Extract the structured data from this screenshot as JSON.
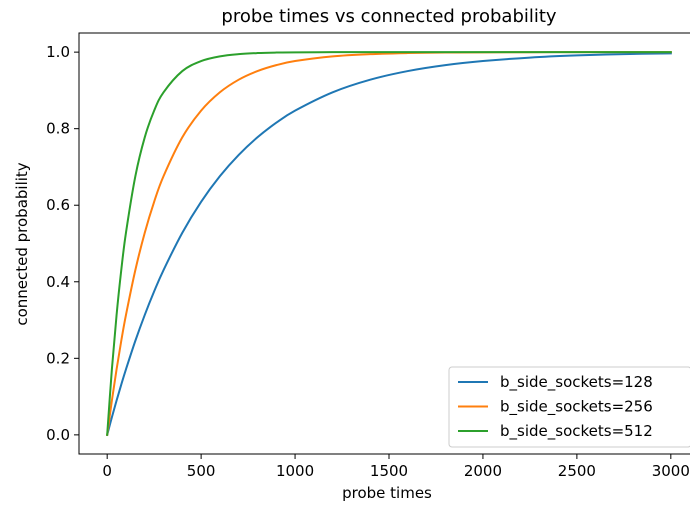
{
  "chart_data": {
    "type": "line",
    "title": "probe times vs connected probability",
    "xlabel": "probe times",
    "ylabel": "connected probability",
    "xlim": [
      -150,
      3150
    ],
    "ylim": [
      -0.05,
      1.05
    ],
    "xticks": [
      0,
      500,
      1000,
      1500,
      2000,
      2500,
      3000
    ],
    "xtick_labels": [
      "0",
      "500",
      "1000",
      "1500",
      "2000",
      "2500",
      "3000"
    ],
    "yticks": [
      0.0,
      0.2,
      0.4,
      0.6,
      0.8,
      1.0
    ],
    "ytick_labels": [
      "0.0",
      "0.2",
      "0.4",
      "0.6",
      "0.8",
      "1.0"
    ],
    "grid": false,
    "legend_position": "lower-right",
    "x": [
      0,
      25,
      50,
      75,
      100,
      150,
      200,
      250,
      300,
      400,
      500,
      600,
      700,
      800,
      900,
      1000,
      1200,
      1400,
      1600,
      1800,
      2000,
      2250,
      2500,
      2750,
      3000
    ],
    "series": [
      {
        "name": "b_side_sockets=128",
        "color": "#1f77b4",
        "values": [
          0.0,
          0.0459,
          0.0897,
          0.1315,
          0.1714,
          0.2459,
          0.3134,
          0.3748,
          0.4307,
          0.5282,
          0.609,
          0.676,
          0.7315,
          0.7775,
          0.8156,
          0.8472,
          0.8951,
          0.928,
          0.9505,
          0.966,
          0.9767,
          0.9858,
          0.9914,
          0.9948,
          0.9968
        ]
      },
      {
        "name": "b_side_sockets=256",
        "color": "#ff7f0e",
        "values": [
          0.0,
          0.0897,
          0.1714,
          0.2459,
          0.3134,
          0.4307,
          0.5282,
          0.609,
          0.676,
          0.7775,
          0.8472,
          0.8951,
          0.928,
          0.9505,
          0.966,
          0.9767,
          0.989,
          0.9948,
          0.9976,
          0.9989,
          0.9995,
          0.9998,
          0.99993,
          0.99997,
          0.99999
        ]
      },
      {
        "name": "b_side_sockets=512",
        "color": "#2ca02c",
        "values": [
          0.0,
          0.1714,
          0.3134,
          0.4307,
          0.5282,
          0.676,
          0.7775,
          0.8472,
          0.8951,
          0.9505,
          0.9767,
          0.989,
          0.9948,
          0.9976,
          0.9989,
          0.9995,
          0.9999,
          1.0,
          1.0,
          1.0,
          1.0,
          1.0,
          1.0,
          1.0,
          1.0
        ]
      }
    ]
  }
}
